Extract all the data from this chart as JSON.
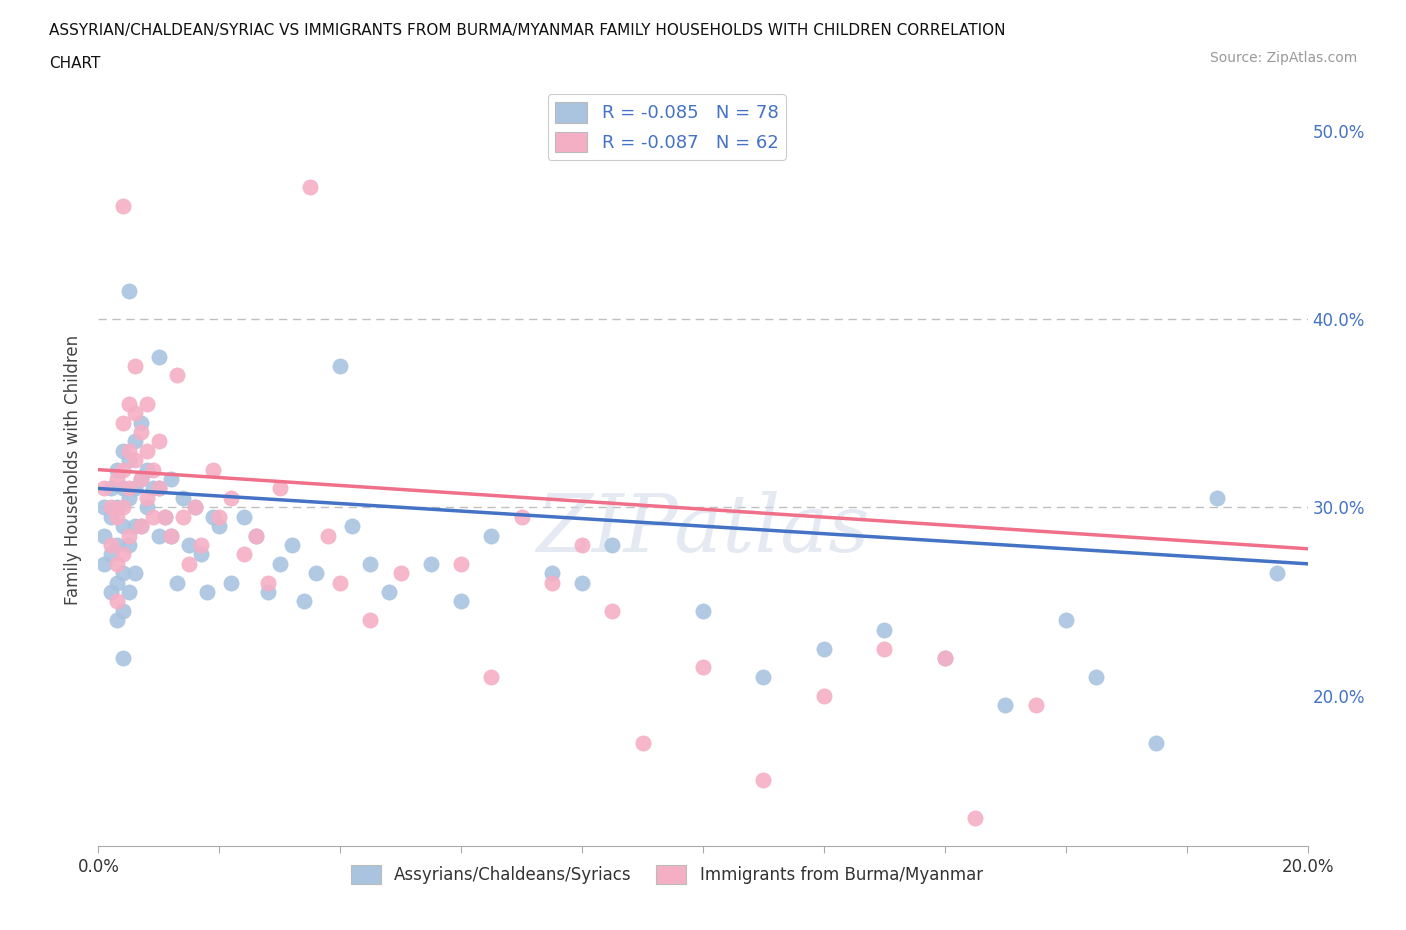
{
  "title_line1": "ASSYRIAN/CHALDEAN/SYRIAC VS IMMIGRANTS FROM BURMA/MYANMAR FAMILY HOUSEHOLDS WITH CHILDREN CORRELATION",
  "title_line2": "CHART",
  "source_text": "Source: ZipAtlas.com",
  "ylabel": "Family Households with Children",
  "xlim": [
    0.0,
    0.2
  ],
  "ylim": [
    0.12,
    0.52
  ],
  "blue_scatter": [
    [
      0.001,
      0.3
    ],
    [
      0.001,
      0.285
    ],
    [
      0.001,
      0.27
    ],
    [
      0.002,
      0.31
    ],
    [
      0.002,
      0.295
    ],
    [
      0.002,
      0.275
    ],
    [
      0.002,
      0.255
    ],
    [
      0.003,
      0.32
    ],
    [
      0.003,
      0.3
    ],
    [
      0.003,
      0.28
    ],
    [
      0.003,
      0.26
    ],
    [
      0.003,
      0.24
    ],
    [
      0.004,
      0.33
    ],
    [
      0.004,
      0.31
    ],
    [
      0.004,
      0.29
    ],
    [
      0.004,
      0.265
    ],
    [
      0.004,
      0.245
    ],
    [
      0.004,
      0.22
    ],
    [
      0.005,
      0.415
    ],
    [
      0.005,
      0.325
    ],
    [
      0.005,
      0.305
    ],
    [
      0.005,
      0.28
    ],
    [
      0.005,
      0.255
    ],
    [
      0.006,
      0.335
    ],
    [
      0.006,
      0.31
    ],
    [
      0.006,
      0.29
    ],
    [
      0.006,
      0.265
    ],
    [
      0.007,
      0.345
    ],
    [
      0.007,
      0.315
    ],
    [
      0.007,
      0.29
    ],
    [
      0.008,
      0.32
    ],
    [
      0.008,
      0.3
    ],
    [
      0.009,
      0.31
    ],
    [
      0.01,
      0.38
    ],
    [
      0.01,
      0.31
    ],
    [
      0.01,
      0.285
    ],
    [
      0.011,
      0.295
    ],
    [
      0.012,
      0.315
    ],
    [
      0.012,
      0.285
    ],
    [
      0.013,
      0.26
    ],
    [
      0.014,
      0.305
    ],
    [
      0.015,
      0.28
    ],
    [
      0.016,
      0.3
    ],
    [
      0.017,
      0.275
    ],
    [
      0.018,
      0.255
    ],
    [
      0.019,
      0.295
    ],
    [
      0.02,
      0.29
    ],
    [
      0.022,
      0.26
    ],
    [
      0.024,
      0.295
    ],
    [
      0.026,
      0.285
    ],
    [
      0.028,
      0.255
    ],
    [
      0.03,
      0.27
    ],
    [
      0.032,
      0.28
    ],
    [
      0.034,
      0.25
    ],
    [
      0.036,
      0.265
    ],
    [
      0.04,
      0.375
    ],
    [
      0.042,
      0.29
    ],
    [
      0.045,
      0.27
    ],
    [
      0.048,
      0.255
    ],
    [
      0.055,
      0.27
    ],
    [
      0.06,
      0.25
    ],
    [
      0.065,
      0.285
    ],
    [
      0.075,
      0.265
    ],
    [
      0.08,
      0.26
    ],
    [
      0.085,
      0.28
    ],
    [
      0.1,
      0.245
    ],
    [
      0.11,
      0.21
    ],
    [
      0.12,
      0.225
    ],
    [
      0.13,
      0.235
    ],
    [
      0.14,
      0.22
    ],
    [
      0.15,
      0.195
    ],
    [
      0.16,
      0.24
    ],
    [
      0.165,
      0.21
    ],
    [
      0.175,
      0.175
    ],
    [
      0.185,
      0.305
    ],
    [
      0.195,
      0.265
    ]
  ],
  "pink_scatter": [
    [
      0.001,
      0.31
    ],
    [
      0.002,
      0.3
    ],
    [
      0.002,
      0.28
    ],
    [
      0.003,
      0.315
    ],
    [
      0.003,
      0.295
    ],
    [
      0.003,
      0.27
    ],
    [
      0.003,
      0.25
    ],
    [
      0.004,
      0.46
    ],
    [
      0.004,
      0.345
    ],
    [
      0.004,
      0.32
    ],
    [
      0.004,
      0.3
    ],
    [
      0.004,
      0.275
    ],
    [
      0.005,
      0.355
    ],
    [
      0.005,
      0.33
    ],
    [
      0.005,
      0.31
    ],
    [
      0.005,
      0.285
    ],
    [
      0.006,
      0.375
    ],
    [
      0.006,
      0.35
    ],
    [
      0.006,
      0.325
    ],
    [
      0.007,
      0.34
    ],
    [
      0.007,
      0.315
    ],
    [
      0.007,
      0.29
    ],
    [
      0.008,
      0.355
    ],
    [
      0.008,
      0.33
    ],
    [
      0.008,
      0.305
    ],
    [
      0.009,
      0.32
    ],
    [
      0.009,
      0.295
    ],
    [
      0.01,
      0.335
    ],
    [
      0.01,
      0.31
    ],
    [
      0.011,
      0.295
    ],
    [
      0.012,
      0.285
    ],
    [
      0.013,
      0.37
    ],
    [
      0.014,
      0.295
    ],
    [
      0.015,
      0.27
    ],
    [
      0.016,
      0.3
    ],
    [
      0.017,
      0.28
    ],
    [
      0.019,
      0.32
    ],
    [
      0.02,
      0.295
    ],
    [
      0.022,
      0.305
    ],
    [
      0.024,
      0.275
    ],
    [
      0.026,
      0.285
    ],
    [
      0.028,
      0.26
    ],
    [
      0.03,
      0.31
    ],
    [
      0.035,
      0.47
    ],
    [
      0.038,
      0.285
    ],
    [
      0.04,
      0.26
    ],
    [
      0.045,
      0.24
    ],
    [
      0.05,
      0.265
    ],
    [
      0.06,
      0.27
    ],
    [
      0.065,
      0.21
    ],
    [
      0.07,
      0.295
    ],
    [
      0.075,
      0.26
    ],
    [
      0.08,
      0.28
    ],
    [
      0.085,
      0.245
    ],
    [
      0.09,
      0.175
    ],
    [
      0.1,
      0.215
    ],
    [
      0.11,
      0.155
    ],
    [
      0.12,
      0.2
    ],
    [
      0.13,
      0.225
    ],
    [
      0.14,
      0.22
    ],
    [
      0.145,
      0.135
    ],
    [
      0.155,
      0.195
    ]
  ],
  "blue_line_x": [
    0.0,
    0.2
  ],
  "blue_line_y": [
    0.31,
    0.27
  ],
  "pink_line_x": [
    0.0,
    0.2
  ],
  "pink_line_y": [
    0.32,
    0.278
  ],
  "blue_color": "#aac4e0",
  "pink_color": "#f5afc5",
  "blue_line_color": "#4472c4",
  "pink_line_color": "#f0708a",
  "legend_blue_color": "#aac4e0",
  "legend_pink_color": "#f5afc5",
  "legend_text_color": "#4472c4",
  "watermark": "ZIPatlas",
  "dashed_line_y1": 0.4,
  "dashed_line_y2": 0.3,
  "background_color": "#ffffff",
  "right_ytick_color": "#4472c4"
}
